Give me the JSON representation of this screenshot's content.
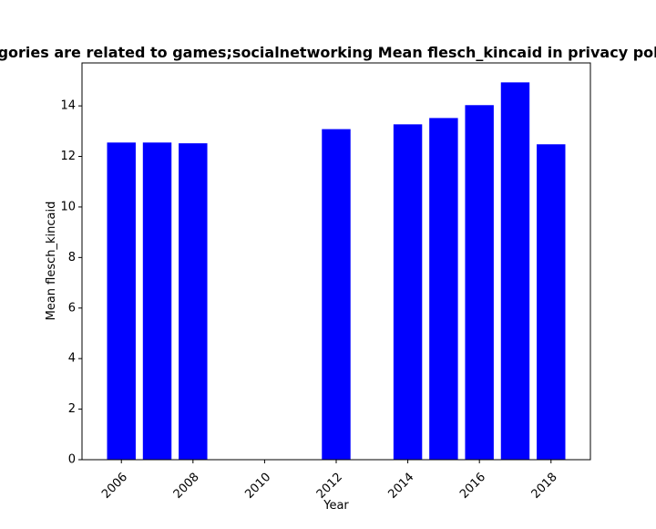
{
  "chart_data": {
    "type": "bar",
    "title": "Categories are related to games;socialnetworking Mean flesch_kincaid in privacy policies",
    "xlabel": "Year",
    "ylabel": "Mean flesch_kincaid",
    "categories": [
      2006,
      2007,
      2008,
      2012,
      2014,
      2015,
      2016,
      2017,
      2018
    ],
    "values": [
      12.55,
      12.55,
      12.52,
      13.08,
      13.27,
      13.52,
      14.03,
      14.93,
      12.48
    ],
    "xlim": [
      2004.9,
      2019.1
    ],
    "ylim": [
      0,
      15.7
    ],
    "xticks": [
      2006,
      2008,
      2010,
      2012,
      2014,
      2016,
      2018
    ],
    "yticks": [
      0,
      2,
      4,
      6,
      8,
      10,
      12,
      14
    ],
    "bar_color": "#0000ff",
    "grid": false,
    "legend": "none"
  }
}
